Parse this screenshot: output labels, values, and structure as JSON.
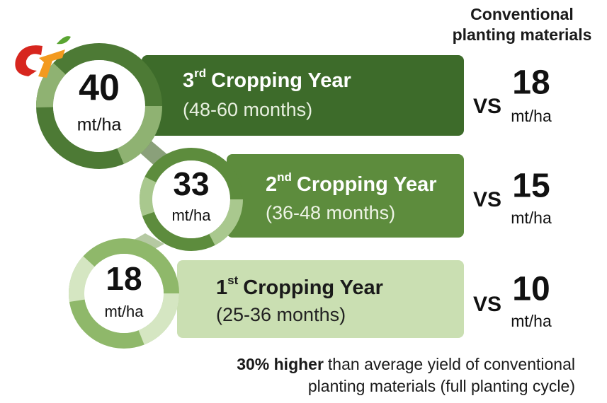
{
  "header": {
    "line1": "Conventional",
    "line2": "planting materials"
  },
  "rows": [
    {
      "value": "40",
      "unit": "mt/ha",
      "ordinal": "3",
      "suffix": "rd",
      "title": "Cropping Year",
      "period": "(48-60 months)",
      "vs": "VS",
      "conventional": "18",
      "conventional_unit": "mt/ha"
    },
    {
      "value": "33",
      "unit": "mt/ha",
      "ordinal": "2",
      "suffix": "nd",
      "title": "Cropping Year",
      "period": "(36-48 months)",
      "vs": "VS",
      "conventional": "15",
      "conventional_unit": "mt/ha"
    },
    {
      "value": "18",
      "unit": "mt/ha",
      "ordinal": "1",
      "suffix": "st",
      "title": "Cropping Year",
      "period": "(25-36 months)",
      "vs": "VS",
      "conventional": "10",
      "conventional_unit": "mt/ha"
    }
  ],
  "footer": {
    "highlight": "30% higher",
    "line1": "than average yield of conventional",
    "line2": "planting materials (full planting cycle)"
  }
}
